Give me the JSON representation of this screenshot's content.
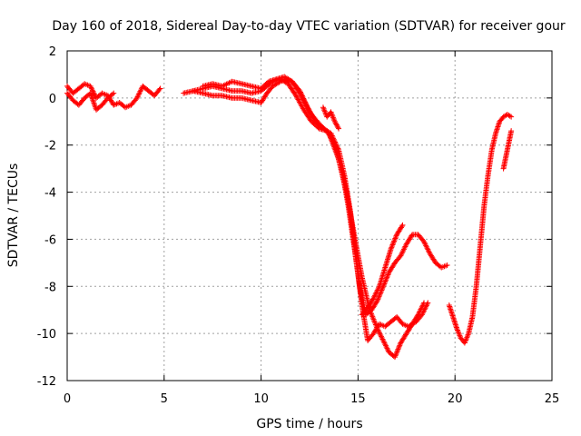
{
  "chart_data": {
    "type": "scatter",
    "title": "Day 160 of 2018, Sidereal Day-to-day VTEC variation (SDTVAR) for receiver gour",
    "xlabel": "GPS time / hours",
    "ylabel": "SDTVAR / TECUs",
    "xlim": [
      0,
      25
    ],
    "ylim": [
      -12,
      2
    ],
    "xticks": [
      0,
      5,
      10,
      15,
      20,
      25
    ],
    "yticks": [
      -12,
      -10,
      -8,
      -6,
      -4,
      -2,
      0,
      2
    ],
    "grid": true,
    "marker": "+",
    "color": "#ff0000",
    "series": [
      {
        "x": [
          0.0,
          0.3,
          0.6,
          0.9,
          1.2,
          1.5,
          1.8,
          2.1,
          2.4,
          2.7,
          3.0,
          3.3,
          3.6,
          3.9,
          4.2,
          4.5,
          4.8
        ],
        "y": [
          0.5,
          0.2,
          0.4,
          0.6,
          0.5,
          0.0,
          0.2,
          0.1,
          -0.3,
          -0.2,
          -0.4,
          -0.3,
          0.0,
          0.5,
          0.3,
          0.1,
          0.4
        ]
      },
      {
        "x": [
          0.0,
          0.3,
          0.6,
          0.9,
          1.2,
          1.5,
          1.8,
          2.1,
          2.4
        ],
        "y": [
          0.2,
          -0.1,
          -0.3,
          0.0,
          0.2,
          -0.5,
          -0.3,
          0.0,
          0.2
        ]
      },
      {
        "x": [
          6.0,
          6.5,
          7.0,
          7.5,
          8.0,
          8.5,
          9.0,
          9.5,
          10.0,
          10.3,
          10.6,
          11.0,
          11.3,
          11.6,
          12.0,
          12.4,
          12.8,
          13.2,
          13.6,
          14.0,
          14.3,
          14.6,
          14.9,
          15.2,
          15.5,
          15.8,
          16.1,
          16.4,
          16.7,
          17.0,
          17.3,
          17.6,
          18.0,
          18.3,
          18.6
        ],
        "y": [
          0.2,
          0.3,
          0.2,
          0.1,
          0.1,
          0.0,
          0.0,
          -0.1,
          -0.2,
          0.2,
          0.5,
          0.7,
          0.8,
          0.7,
          0.3,
          -0.4,
          -1.0,
          -1.3,
          -1.5,
          -2.2,
          -3.3,
          -4.8,
          -6.8,
          -8.8,
          -10.3,
          -10.0,
          -9.6,
          -9.7,
          -9.5,
          -9.3,
          -9.6,
          -9.7,
          -9.5,
          -9.2,
          -8.7
        ]
      },
      {
        "x": [
          6.5,
          7.0,
          7.5,
          8.0,
          8.5,
          9.0,
          9.5,
          10.0,
          10.3,
          10.6,
          11.0,
          11.4,
          11.8,
          12.2,
          12.6,
          13.0,
          13.4,
          13.8,
          14.2,
          14.5,
          14.8,
          15.1,
          15.4,
          15.7,
          16.0,
          16.3,
          16.6,
          16.9,
          17.2,
          17.5,
          17.8,
          18.1,
          18.4,
          18.7,
          19.0,
          19.3,
          19.6
        ],
        "y": [
          0.3,
          0.4,
          0.5,
          0.4,
          0.3,
          0.3,
          0.2,
          0.3,
          0.5,
          0.7,
          0.8,
          0.6,
          0.1,
          -0.5,
          -1.0,
          -1.3,
          -1.4,
          -2.0,
          -3.2,
          -4.6,
          -6.3,
          -8.1,
          -9.2,
          -9.0,
          -8.6,
          -8.0,
          -7.4,
          -7.0,
          -6.7,
          -6.2,
          -5.8,
          -5.8,
          -6.1,
          -6.6,
          -7.0,
          -7.2,
          -7.1
        ]
      },
      {
        "x": [
          7.0,
          7.5,
          8.0,
          8.5,
          9.0,
          9.5,
          10.0,
          10.4,
          10.8,
          11.2,
          11.6,
          12.0,
          12.5,
          13.0,
          13.5,
          14.0,
          14.4,
          14.8,
          15.2,
          15.6,
          16.0,
          16.3,
          16.6,
          16.9,
          17.2,
          17.5,
          17.8,
          18.1,
          18.4
        ],
        "y": [
          0.5,
          0.6,
          0.5,
          0.7,
          0.6,
          0.5,
          0.4,
          0.7,
          0.8,
          0.9,
          0.7,
          0.2,
          -0.6,
          -1.1,
          -1.5,
          -2.6,
          -4.0,
          -5.8,
          -7.6,
          -9.0,
          -9.8,
          -10.3,
          -10.8,
          -11.0,
          -10.4,
          -10.0,
          -9.6,
          -9.2,
          -8.7
        ]
      },
      {
        "x": [
          15.2,
          15.5,
          15.8,
          16.1,
          16.4,
          16.7,
          17.0,
          17.3
        ],
        "y": [
          -9.2,
          -8.9,
          -8.5,
          -8.0,
          -7.2,
          -6.4,
          -5.8,
          -5.4
        ]
      },
      {
        "x": [
          13.2,
          13.4,
          13.6,
          13.8,
          14.0
        ],
        "y": [
          -0.4,
          -0.8,
          -0.6,
          -1.0,
          -1.3
        ]
      },
      {
        "x": [
          19.7,
          19.9,
          20.1,
          20.3,
          20.5,
          20.7,
          20.9,
          21.1,
          21.3,
          21.5,
          21.7,
          21.9,
          22.1,
          22.3,
          22.5,
          22.7,
          22.9
        ],
        "y": [
          -8.8,
          -9.3,
          -9.8,
          -10.2,
          -10.4,
          -10.0,
          -9.3,
          -8.0,
          -6.3,
          -4.6,
          -3.3,
          -2.2,
          -1.5,
          -1.0,
          -0.8,
          -0.7,
          -0.8
        ]
      },
      {
        "x": [
          22.5,
          22.6,
          22.7,
          22.8,
          22.9
        ],
        "y": [
          -3.0,
          -2.6,
          -2.2,
          -1.8,
          -1.4
        ]
      }
    ]
  }
}
